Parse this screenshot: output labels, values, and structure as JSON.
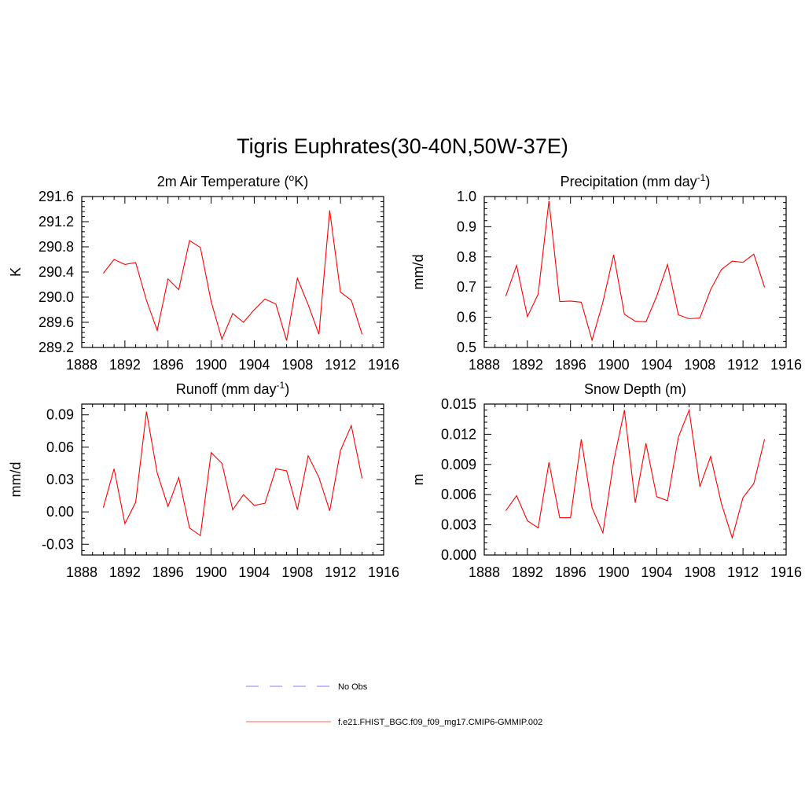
{
  "figure": {
    "title": "Tigris Euphrates(30-40N,50W-37E)"
  },
  "legend": {
    "placement": "bottom-center",
    "entries": [
      {
        "label": "No Obs",
        "color": "#9999ff",
        "style": "dashed"
      },
      {
        "label": "f.e21.FHIST_BGC.f09_f09_mg17.CMIP6-GMMIP.002",
        "color": "#ff8080",
        "style": "solid"
      }
    ]
  },
  "chart_data": [
    {
      "type": "line",
      "title_main": "2m Air Temperature (",
      "title_sup": "o",
      "title_end": "K)",
      "ylabel": "K",
      "xlim": [
        1888,
        1916
      ],
      "ylim": [
        289.2,
        291.6
      ],
      "xticks": [
        "1888",
        "1892",
        "1896",
        "1900",
        "1904",
        "1908",
        "1912",
        "1916"
      ],
      "yticks": [
        "289.2",
        "289.6",
        "290.0",
        "290.4",
        "290.8",
        "291.2",
        "291.6"
      ],
      "series": [
        {
          "color": "#ff0000",
          "x": [
            1890,
            1891,
            1892,
            1893,
            1894,
            1895,
            1896,
            1897,
            1898,
            1899,
            1900,
            1901,
            1902,
            1903,
            1904,
            1905,
            1906,
            1907,
            1908,
            1909,
            1910,
            1911,
            1912,
            1913,
            1914
          ],
          "y": [
            290.38,
            290.6,
            290.52,
            290.55,
            289.95,
            289.47,
            290.29,
            290.12,
            290.9,
            290.79,
            289.93,
            289.33,
            289.74,
            289.6,
            289.8,
            289.97,
            289.89,
            289.31,
            290.3,
            289.88,
            289.41,
            291.38,
            290.08,
            289.95,
            289.41
          ]
        }
      ]
    },
    {
      "type": "line",
      "title_main": "Precipitation (mm day",
      "title_sup": "-1",
      "title_end": ")",
      "ylabel": "mm/d",
      "xlim": [
        1888,
        1916
      ],
      "ylim": [
        0.5,
        1.0
      ],
      "xticks": [
        "1888",
        "1892",
        "1896",
        "1900",
        "1904",
        "1908",
        "1912",
        "1916"
      ],
      "yticks": [
        "0.5",
        "0.6",
        "0.7",
        "0.8",
        "0.9",
        "1.0"
      ],
      "series": [
        {
          "color": "#ff0000",
          "x": [
            1890,
            1891,
            1892,
            1893,
            1894,
            1895,
            1896,
            1897,
            1898,
            1899,
            1900,
            1901,
            1902,
            1903,
            1904,
            1905,
            1906,
            1907,
            1908,
            1909,
            1910,
            1911,
            1912,
            1913,
            1914
          ],
          "y": [
            0.67,
            0.772,
            0.602,
            0.677,
            0.986,
            0.652,
            0.654,
            0.65,
            0.524,
            0.65,
            0.807,
            0.61,
            0.587,
            0.585,
            0.67,
            0.775,
            0.608,
            0.595,
            0.598,
            0.692,
            0.758,
            0.786,
            0.782,
            0.809,
            0.699
          ]
        }
      ]
    },
    {
      "type": "line",
      "title_main": "Runoff (mm day",
      "title_sup": "-1",
      "title_end": ")",
      "ylabel": "mm/d",
      "xlim": [
        1888,
        1916
      ],
      "ylim": [
        -0.04,
        0.1
      ],
      "xticks": [
        "1888",
        "1892",
        "1896",
        "1900",
        "1904",
        "1908",
        "1912",
        "1916"
      ],
      "yticks": [
        "-0.03",
        "0.00",
        "0.03",
        "0.06",
        "0.09"
      ],
      "series": [
        {
          "color": "#ff0000",
          "x": [
            1890,
            1891,
            1892,
            1893,
            1894,
            1895,
            1896,
            1897,
            1898,
            1899,
            1900,
            1901,
            1902,
            1903,
            1904,
            1905,
            1906,
            1907,
            1908,
            1909,
            1910,
            1911,
            1912,
            1913,
            1914
          ],
          "y": [
            0.004,
            0.04,
            -0.011,
            0.009,
            0.093,
            0.036,
            0.005,
            0.032,
            -0.015,
            -0.022,
            0.055,
            0.045,
            0.002,
            0.016,
            0.006,
            0.008,
            0.04,
            0.038,
            0.002,
            0.052,
            0.032,
            0.001,
            0.057,
            0.08,
            0.031
          ]
        }
      ]
    },
    {
      "type": "line",
      "title_main": "Snow Depth (m)",
      "title_sup": "",
      "title_end": "",
      "ylabel": "m",
      "xlim": [
        1888,
        1916
      ],
      "ylim": [
        0.0,
        0.015
      ],
      "xticks": [
        "1888",
        "1892",
        "1896",
        "1900",
        "1904",
        "1908",
        "1912",
        "1916"
      ],
      "yticks": [
        "0.000",
        "0.003",
        "0.006",
        "0.009",
        "0.012",
        "0.015"
      ],
      "series": [
        {
          "color": "#ff0000",
          "x": [
            1890,
            1891,
            1892,
            1893,
            1894,
            1895,
            1896,
            1897,
            1898,
            1899,
            1900,
            1901,
            1902,
            1903,
            1904,
            1905,
            1906,
            1907,
            1908,
            1909,
            1910,
            1911,
            1912,
            1913,
            1914
          ],
          "y": [
            0.0044,
            0.0059,
            0.0034,
            0.0027,
            0.0092,
            0.0037,
            0.0037,
            0.0115,
            0.0047,
            0.0022,
            0.0093,
            0.0144,
            0.0052,
            0.0111,
            0.0058,
            0.0054,
            0.0117,
            0.0144,
            0.0068,
            0.0098,
            0.0051,
            0.0017,
            0.0057,
            0.0071,
            0.0115
          ]
        }
      ]
    }
  ]
}
